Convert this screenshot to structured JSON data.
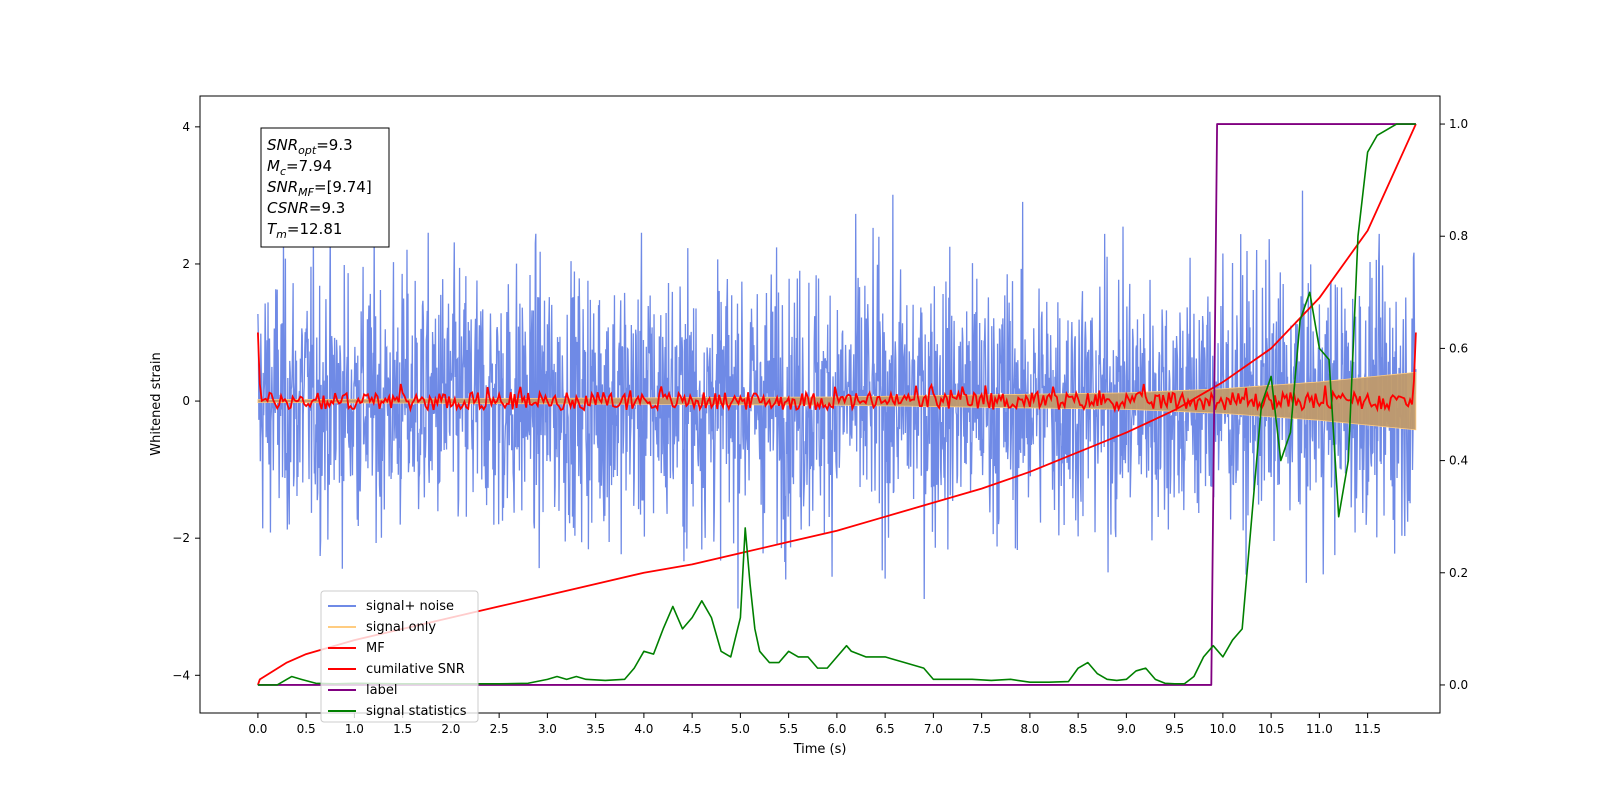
{
  "chart_data": {
    "type": "line",
    "xlabel": "Time (s)",
    "ylabel": "Whitened strain",
    "xlim": [
      -0.6,
      12.25
    ],
    "ylim": [
      -4.55,
      4.45
    ],
    "y2lim": [
      -0.05,
      1.05
    ],
    "x_ticks": [
      "0.0",
      "0.5",
      "1.0",
      "1.5",
      "2.0",
      "2.5",
      "3.0",
      "3.5",
      "4.0",
      "4.5",
      "5.0",
      "5.5",
      "6.0",
      "6.5",
      "7.0",
      "7.5",
      "8.0",
      "8.5",
      "9.0",
      "9.5",
      "10.0",
      "10.5",
      "11.0",
      "11.5"
    ],
    "y_ticks": [
      "−4",
      "−2",
      "0",
      "2",
      "4"
    ],
    "y2_ticks": [
      "0.0",
      "0.2",
      "0.4",
      "0.6",
      "0.8",
      "1.0"
    ],
    "grid": false,
    "legend_position": "lower-left",
    "info_box": [
      {
        "name": "SNR",
        "sub": "opt",
        "value": "=9.3"
      },
      {
        "name": "M",
        "sub": "c",
        "value": "=7.94"
      },
      {
        "name": "SNR",
        "sub": "MF",
        "value": "=[9.74]"
      },
      {
        "name": "CSNR",
        "sub": "",
        "value": "=9.3"
      },
      {
        "name": "T",
        "sub": "m",
        "value": "=12.81"
      }
    ],
    "colors": {
      "noise": "#6f8ae6",
      "signal": "#ffcc80",
      "mf": "#ff0000",
      "csnr": "#ff0000",
      "label": "#800080",
      "stats": "#008000"
    },
    "series": [
      {
        "name": "signal+ noise",
        "axis": "left",
        "t0": 0.0,
        "t1": 12.0,
        "amplitude_range": [
          -4,
          4
        ]
      },
      {
        "name": "signal only",
        "axis": "left",
        "t": [
          0,
          6,
          9,
          10,
          11,
          12
        ],
        "envelope": [
          0.02,
          0.06,
          0.12,
          0.18,
          0.28,
          0.42
        ]
      },
      {
        "name": "MF",
        "axis": "left",
        "t0": 0.0,
        "t1": 12.0,
        "start": 1.0,
        "end": 1.0,
        "range": [
          -0.15,
          0.25
        ]
      },
      {
        "name": "cumilative SNR",
        "axis": "right",
        "t": [
          0,
          0.02,
          0.3,
          0.5,
          1,
          1.5,
          2,
          2.5,
          3,
          3.5,
          4,
          4.5,
          5,
          5.5,
          6,
          6.5,
          7,
          7.5,
          8,
          8.5,
          9,
          9.5,
          9.9,
          10,
          10.5,
          11,
          11.5,
          12
        ],
        "values": [
          0.0,
          0.01,
          0.04,
          0.055,
          0.08,
          0.1,
          0.12,
          0.14,
          0.16,
          0.18,
          0.2,
          0.215,
          0.235,
          0.255,
          0.275,
          0.3,
          0.325,
          0.35,
          0.38,
          0.415,
          0.45,
          0.49,
          0.53,
          0.54,
          0.6,
          0.69,
          0.81,
          1.0
        ]
      },
      {
        "name": "label",
        "axis": "right",
        "t": [
          0,
          9.88,
          9.94,
          12.0
        ],
        "values": [
          0,
          0,
          1,
          1
        ]
      },
      {
        "name": "signal statistics",
        "axis": "right",
        "t": [
          0,
          0.2,
          0.3,
          0.35,
          0.45,
          0.6,
          0.8,
          1,
          1.5,
          2,
          2.5,
          2.8,
          3,
          3.1,
          3.2,
          3.3,
          3.4,
          3.6,
          3.8,
          3.9,
          4.0,
          4.1,
          4.2,
          4.3,
          4.35,
          4.4,
          4.5,
          4.6,
          4.7,
          4.8,
          4.9,
          5.0,
          5.05,
          5.1,
          5.15,
          5.2,
          5.3,
          5.4,
          5.5,
          5.6,
          5.7,
          5.8,
          5.9,
          6.0,
          6.1,
          6.15,
          6.3,
          6.5,
          6.7,
          6.9,
          7.0,
          7.2,
          7.4,
          7.6,
          7.8,
          8.0,
          8.2,
          8.4,
          8.5,
          8.6,
          8.7,
          8.8,
          8.9,
          9.0,
          9.1,
          9.2,
          9.3,
          9.4,
          9.5,
          9.6,
          9.7,
          9.8,
          9.9,
          10.0,
          10.1,
          10.2,
          10.3,
          10.4,
          10.5,
          10.6,
          10.7,
          10.8,
          10.9,
          11.0,
          11.1,
          11.2,
          11.3,
          11.4,
          11.5,
          11.6,
          11.7,
          11.8,
          11.9,
          12.0
        ],
        "values": [
          0.0,
          0.0,
          0.01,
          0.015,
          0.01,
          0.003,
          0.002,
          0.003,
          0.002,
          0.002,
          0.002,
          0.003,
          0.01,
          0.015,
          0.01,
          0.015,
          0.01,
          0.008,
          0.01,
          0.03,
          0.06,
          0.055,
          0.1,
          0.14,
          0.12,
          0.1,
          0.12,
          0.15,
          0.12,
          0.06,
          0.05,
          0.12,
          0.28,
          0.18,
          0.1,
          0.06,
          0.04,
          0.04,
          0.06,
          0.05,
          0.05,
          0.03,
          0.03,
          0.05,
          0.07,
          0.06,
          0.05,
          0.05,
          0.04,
          0.03,
          0.01,
          0.01,
          0.01,
          0.008,
          0.01,
          0.005,
          0.005,
          0.006,
          0.03,
          0.04,
          0.02,
          0.01,
          0.008,
          0.01,
          0.025,
          0.03,
          0.01,
          0.003,
          0.002,
          0.002,
          0.015,
          0.05,
          0.07,
          0.05,
          0.08,
          0.1,
          0.3,
          0.5,
          0.55,
          0.4,
          0.45,
          0.65,
          0.7,
          0.6,
          0.58,
          0.3,
          0.4,
          0.8,
          0.95,
          0.98,
          0.99,
          1.0,
          1.0,
          1.0
        ]
      }
    ]
  }
}
